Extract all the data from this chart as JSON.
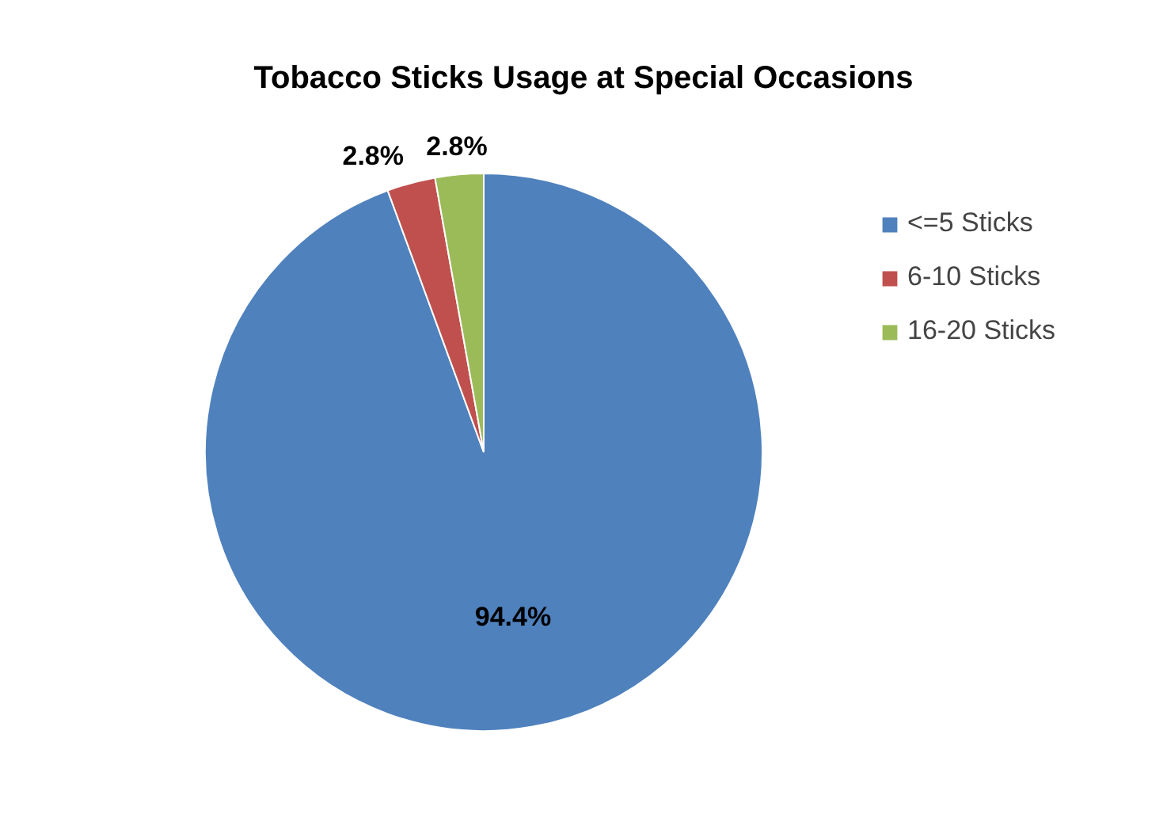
{
  "chart_data": {
    "type": "pie",
    "title": "Tobacco Sticks Usage at Special Occasions",
    "categories": [
      "<=5 Sticks",
      "6-10 Sticks",
      "16-20 Sticks"
    ],
    "values": [
      94.4,
      2.8,
      2.8
    ],
    "colors": [
      "#4f81bd",
      "#c0504d",
      "#9bbb59"
    ],
    "value_labels": [
      "94.4%",
      "2.8%",
      "2.8%"
    ],
    "legend": "right"
  }
}
